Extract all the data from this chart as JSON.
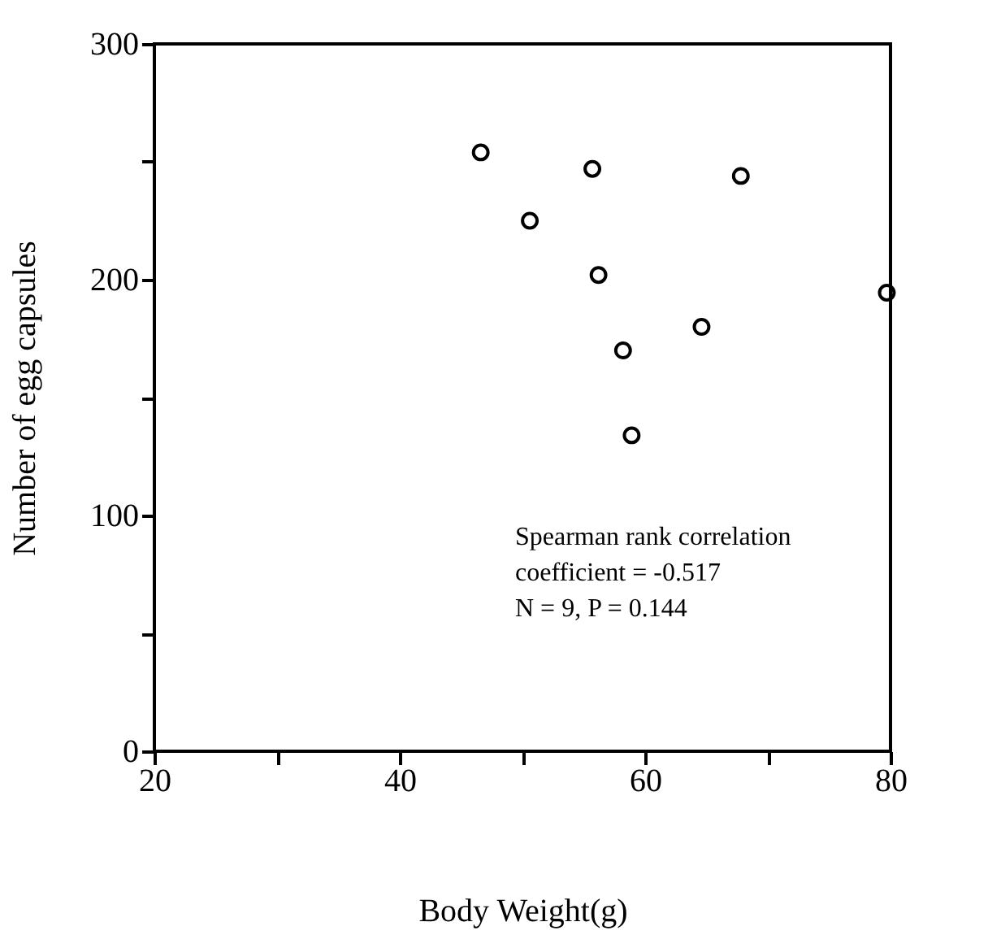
{
  "chart_data": {
    "type": "scatter",
    "xlabel": "Body Weight(g)",
    "ylabel": "Number of egg capsules",
    "x": [
      46.6,
      50.6,
      55.7,
      67.8,
      56.2,
      64.6,
      58.2,
      58.9,
      79.7
    ],
    "values": [
      254,
      225,
      247,
      244,
      202,
      180,
      170,
      134,
      194.5
    ],
    "color": "#000000",
    "marker": "circle",
    "xlim": [
      20,
      80
    ],
    "xticks": [
      20,
      {
        "value": 30,
        "label": null
      },
      40,
      {
        "value": 50,
        "label": null
      },
      60,
      {
        "value": 70,
        "label": null
      },
      80
    ],
    "ylim": [
      0,
      300
    ],
    "yticks": [
      0,
      {
        "value": 50,
        "label": null
      },
      100,
      {
        "value": 150,
        "label": null
      },
      200,
      {
        "value": 250,
        "label": null
      },
      300
    ],
    "grid": false,
    "annotations": [
      "Spearman rank correlation\ncoefficient = -0.517\nN = 9, P = 0.144"
    ]
  }
}
